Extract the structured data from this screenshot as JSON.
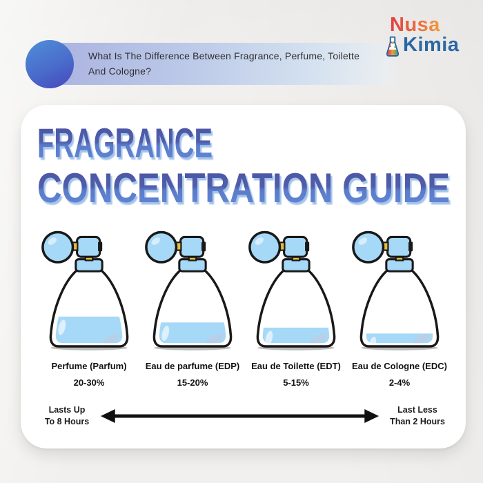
{
  "header": {
    "question": "What Is The Difference Between Fragrance, Perfume, Toilette And Cologne?",
    "logo": {
      "word_top": "Nusa",
      "word_bottom": "Kimia",
      "icon": "flask-icon"
    }
  },
  "poster": {
    "title_line1": "FRAGRANCE",
    "title_line2": "CONCENTRATION GUIDE",
    "bottles": [
      {
        "name": "Perfume (Parfum)",
        "concentration": "20-30%",
        "fill_ratio": 0.36
      },
      {
        "name": "Eau de parfume (EDP)",
        "concentration": "15-20%",
        "fill_ratio": 0.28
      },
      {
        "name": "Eau de Toilette (EDT)",
        "concentration": "5-15%",
        "fill_ratio": 0.21
      },
      {
        "name": "Eau de Cologne (EDC)",
        "concentration": "2-4%",
        "fill_ratio": 0.13
      }
    ],
    "duration": {
      "left_line1": "Lasts Up",
      "left_line2": "To 8 Hours",
      "right_line1": "Last Less",
      "right_line2": "Than 2 Hours"
    }
  },
  "colors": {
    "title_blue_top": "#4d55a2",
    "title_blue_bottom": "#6189d8",
    "title_shadow": "#9fc0e8",
    "liquid_blue": "#a6d8f7",
    "liquid_highlight": "#ddf0fc",
    "liquid_crescent": "#b7cfe7",
    "banner_periwinkle": "#aab3e0",
    "circle_blue_start": "#4f8cd8",
    "circle_blue_end": "#4547bd",
    "logo_red": "#e23f3f",
    "logo_orange": "#f59a3c",
    "logo_blue": "#2a67a3",
    "outline_black": "#191919",
    "card_white": "#ffffff",
    "background_paper": "#f1f0ee"
  }
}
